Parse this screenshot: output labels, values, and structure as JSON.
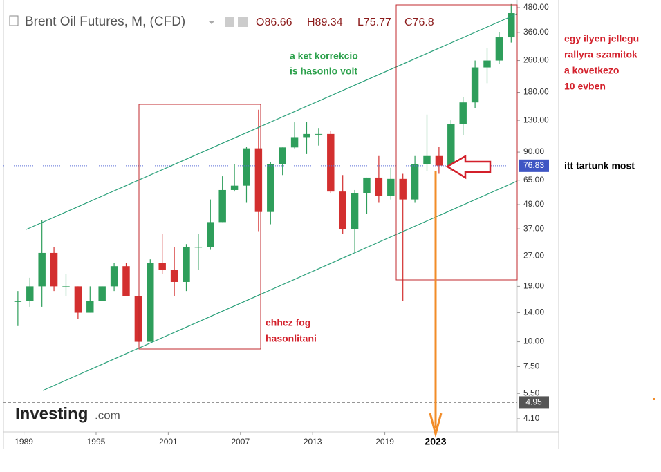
{
  "chart_data": {
    "type": "candlestick",
    "title": "Brent Oil Futures, M, (CFD)",
    "ohlc_header": [
      "O86.66",
      "H89.34",
      "L75.77",
      "C76.8"
    ],
    "x": [
      1988.5,
      1989.5,
      1990.5,
      1991.5,
      1992.5,
      1993.5,
      1994.5,
      1995.5,
      1996.5,
      1997.5,
      1998.5,
      1999.5,
      2000.5,
      2001.5,
      2002.5,
      2003.5,
      2004.5,
      2005.5,
      2006.5,
      2007.5,
      2008.5,
      2009.5,
      2010.5,
      2011.5,
      2012.5,
      2013.5,
      2014.5,
      2015.5,
      2016.5,
      2017.5,
      2018.5,
      2019.5,
      2020.5,
      2021.5,
      2022.5,
      2023.5,
      2024.5,
      2025.5,
      2026.5,
      2027.5,
      2028.5,
      2029.5
    ],
    "open": [
      16,
      16,
      19,
      28,
      19,
      19,
      14,
      16,
      19,
      24,
      17,
      10,
      25,
      23,
      20,
      30,
      30,
      40,
      58,
      61,
      94,
      45,
      78,
      95,
      107,
      111,
      111,
      57,
      37,
      56,
      67,
      54,
      66,
      52,
      78,
      86,
      77,
      125,
      160,
      240,
      260,
      340
    ],
    "high": [
      18,
      21,
      41,
      30,
      22,
      19,
      19,
      19,
      25,
      25,
      17,
      26,
      35,
      30,
      31,
      35,
      52,
      68,
      78,
      96,
      147,
      80,
      95,
      127,
      128,
      119,
      115,
      69,
      58,
      67,
      86,
      75,
      70,
      86,
      139,
      96,
      130,
      170,
      260,
      300,
      360,
      500
    ],
    "low": [
      12,
      15,
      15,
      18,
      17,
      13,
      14,
      16,
      18,
      17,
      10,
      10,
      22,
      17,
      18,
      23,
      29,
      40,
      57,
      50,
      36,
      39,
      69,
      94,
      88,
      97,
      56,
      35,
      28,
      44,
      50,
      52,
      16,
      50,
      72,
      70,
      72,
      110,
      150,
      200,
      250,
      320
    ],
    "close": [
      16,
      19,
      28,
      19,
      19,
      14,
      16,
      19,
      24,
      17,
      10,
      25,
      23,
      20,
      30,
      30,
      40,
      58,
      61,
      94,
      45,
      78,
      95,
      107,
      111,
      111,
      57,
      37,
      56,
      67,
      54,
      66,
      52,
      78,
      86,
      77,
      125,
      160,
      240,
      260,
      340,
      450
    ],
    "up_color": "#2e9e5b",
    "down_color": "#d32f2f",
    "xlim": [
      1987.3,
      2030.0
    ],
    "xticks": [
      1989,
      1995,
      2001,
      2007,
      2013,
      2019
    ],
    "ylim": [
      3.52,
      524
    ],
    "log_scale": true,
    "yticks": [
      {
        "value": 480,
        "label": "480.00"
      },
      {
        "value": 360,
        "label": "360.00"
      },
      {
        "value": 260,
        "label": "260.00"
      },
      {
        "value": 180,
        "label": "180.00"
      },
      {
        "value": 130,
        "label": "130.00"
      },
      {
        "value": 90,
        "label": "90.00"
      },
      {
        "value": 65,
        "label": "65.00"
      },
      {
        "value": 49,
        "label": "49.00"
      },
      {
        "value": 37,
        "label": "37.00"
      },
      {
        "value": 27,
        "label": "27.00"
      },
      {
        "value": 19,
        "label": "19.00"
      },
      {
        "value": 14,
        "label": "14.00"
      },
      {
        "value": 10,
        "label": "10.00"
      },
      {
        "value": 7.5,
        "label": "7.50"
      },
      {
        "value": 5.5,
        "label": "5.50"
      },
      {
        "value": 4.1,
        "label": "4.10"
      }
    ],
    "price_lines": [
      76.83,
      4.95
    ],
    "annotations": {
      "correction": [
        "a ket korrekcio",
        "is hasonlo volt"
      ],
      "rally": [
        "egy ilyen jellegu",
        "rallyra szamitok",
        "a kovetkezo",
        "10 evben"
      ],
      "now": "itt tartunk most",
      "similar": [
        "ehhez fog",
        "hasonlitani"
      ],
      "year_mark": "2023"
    },
    "logo": [
      "Investing",
      ".com"
    ]
  }
}
